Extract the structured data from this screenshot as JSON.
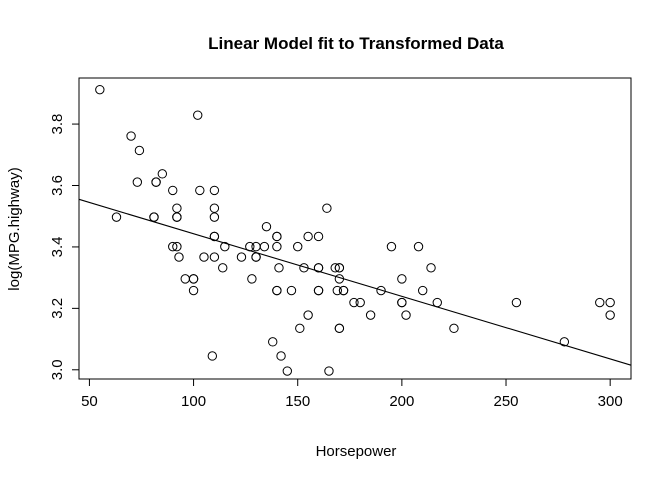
{
  "chart_data": {
    "type": "scatter",
    "title": "Linear Model fit to Transformed Data",
    "xlabel": "Horsepower",
    "ylabel": "log(MPG.highway)",
    "xlim": [
      45,
      310
    ],
    "ylim": [
      2.97,
      3.95
    ],
    "x_ticks": [
      50,
      100,
      150,
      200,
      250,
      300
    ],
    "y_ticks": [
      3.0,
      3.2,
      3.4,
      3.6,
      3.8
    ],
    "x_tick_labels": [
      "50",
      "100",
      "150",
      "200",
      "250",
      "300"
    ],
    "y_tick_labels": [
      "3.0",
      "3.2",
      "3.4",
      "3.6",
      "3.8"
    ],
    "grid": false,
    "legend": "none",
    "fit_line": {
      "x": [
        45,
        310
      ],
      "y": [
        3.555,
        3.015
      ]
    },
    "points": [
      [
        55,
        3.912
      ],
      [
        63,
        3.497
      ],
      [
        70,
        3.761
      ],
      [
        73,
        3.611
      ],
      [
        74,
        3.714
      ],
      [
        81,
        3.497
      ],
      [
        81,
        3.497
      ],
      [
        82,
        3.611
      ],
      [
        82,
        3.611
      ],
      [
        85,
        3.638
      ],
      [
        90,
        3.584
      ],
      [
        90,
        3.401
      ],
      [
        92,
        3.497
      ],
      [
        92,
        3.526
      ],
      [
        92,
        3.497
      ],
      [
        92,
        3.401
      ],
      [
        93,
        3.367
      ],
      [
        96,
        3.296
      ],
      [
        100,
        3.296
      ],
      [
        100,
        3.258
      ],
      [
        100,
        3.296
      ],
      [
        102,
        3.829
      ],
      [
        103,
        3.584
      ],
      [
        105,
        3.367
      ],
      [
        109,
        3.045
      ],
      [
        110,
        3.584
      ],
      [
        110,
        3.526
      ],
      [
        110,
        3.497
      ],
      [
        110,
        3.434
      ],
      [
        110,
        3.434
      ],
      [
        110,
        3.367
      ],
      [
        114,
        3.332
      ],
      [
        115,
        3.401
      ],
      [
        123,
        3.367
      ],
      [
        127,
        3.401
      ],
      [
        128,
        3.296
      ],
      [
        130,
        3.401
      ],
      [
        130,
        3.367
      ],
      [
        130,
        3.367
      ],
      [
        134,
        3.401
      ],
      [
        135,
        3.466
      ],
      [
        138,
        3.091
      ],
      [
        140,
        3.434
      ],
      [
        140,
        3.434
      ],
      [
        140,
        3.401
      ],
      [
        140,
        3.258
      ],
      [
        140,
        3.258
      ],
      [
        141,
        3.332
      ],
      [
        142,
        3.045
      ],
      [
        145,
        2.996
      ],
      [
        147,
        3.258
      ],
      [
        150,
        3.401
      ],
      [
        151,
        3.135
      ],
      [
        153,
        3.332
      ],
      [
        155,
        3.178
      ],
      [
        155,
        3.434
      ],
      [
        160,
        3.434
      ],
      [
        160,
        3.332
      ],
      [
        160,
        3.332
      ],
      [
        160,
        3.258
      ],
      [
        160,
        3.258
      ],
      [
        164,
        3.526
      ],
      [
        165,
        2.996
      ],
      [
        168,
        3.332
      ],
      [
        169,
        3.258
      ],
      [
        170,
        3.332
      ],
      [
        170,
        3.332
      ],
      [
        170,
        3.296
      ],
      [
        170,
        3.135
      ],
      [
        170,
        3.135
      ],
      [
        172,
        3.258
      ],
      [
        172,
        3.258
      ],
      [
        177,
        3.219
      ],
      [
        180,
        3.219
      ],
      [
        185,
        3.178
      ],
      [
        190,
        3.258
      ],
      [
        195,
        3.401
      ],
      [
        200,
        3.296
      ],
      [
        200,
        3.219
      ],
      [
        200,
        3.219
      ],
      [
        202,
        3.178
      ],
      [
        208,
        3.401
      ],
      [
        210,
        3.258
      ],
      [
        214,
        3.332
      ],
      [
        217,
        3.219
      ],
      [
        225,
        3.135
      ],
      [
        255,
        3.219
      ],
      [
        278,
        3.091
      ],
      [
        295,
        3.219
      ],
      [
        300,
        3.219
      ],
      [
        300,
        3.178
      ]
    ]
  }
}
